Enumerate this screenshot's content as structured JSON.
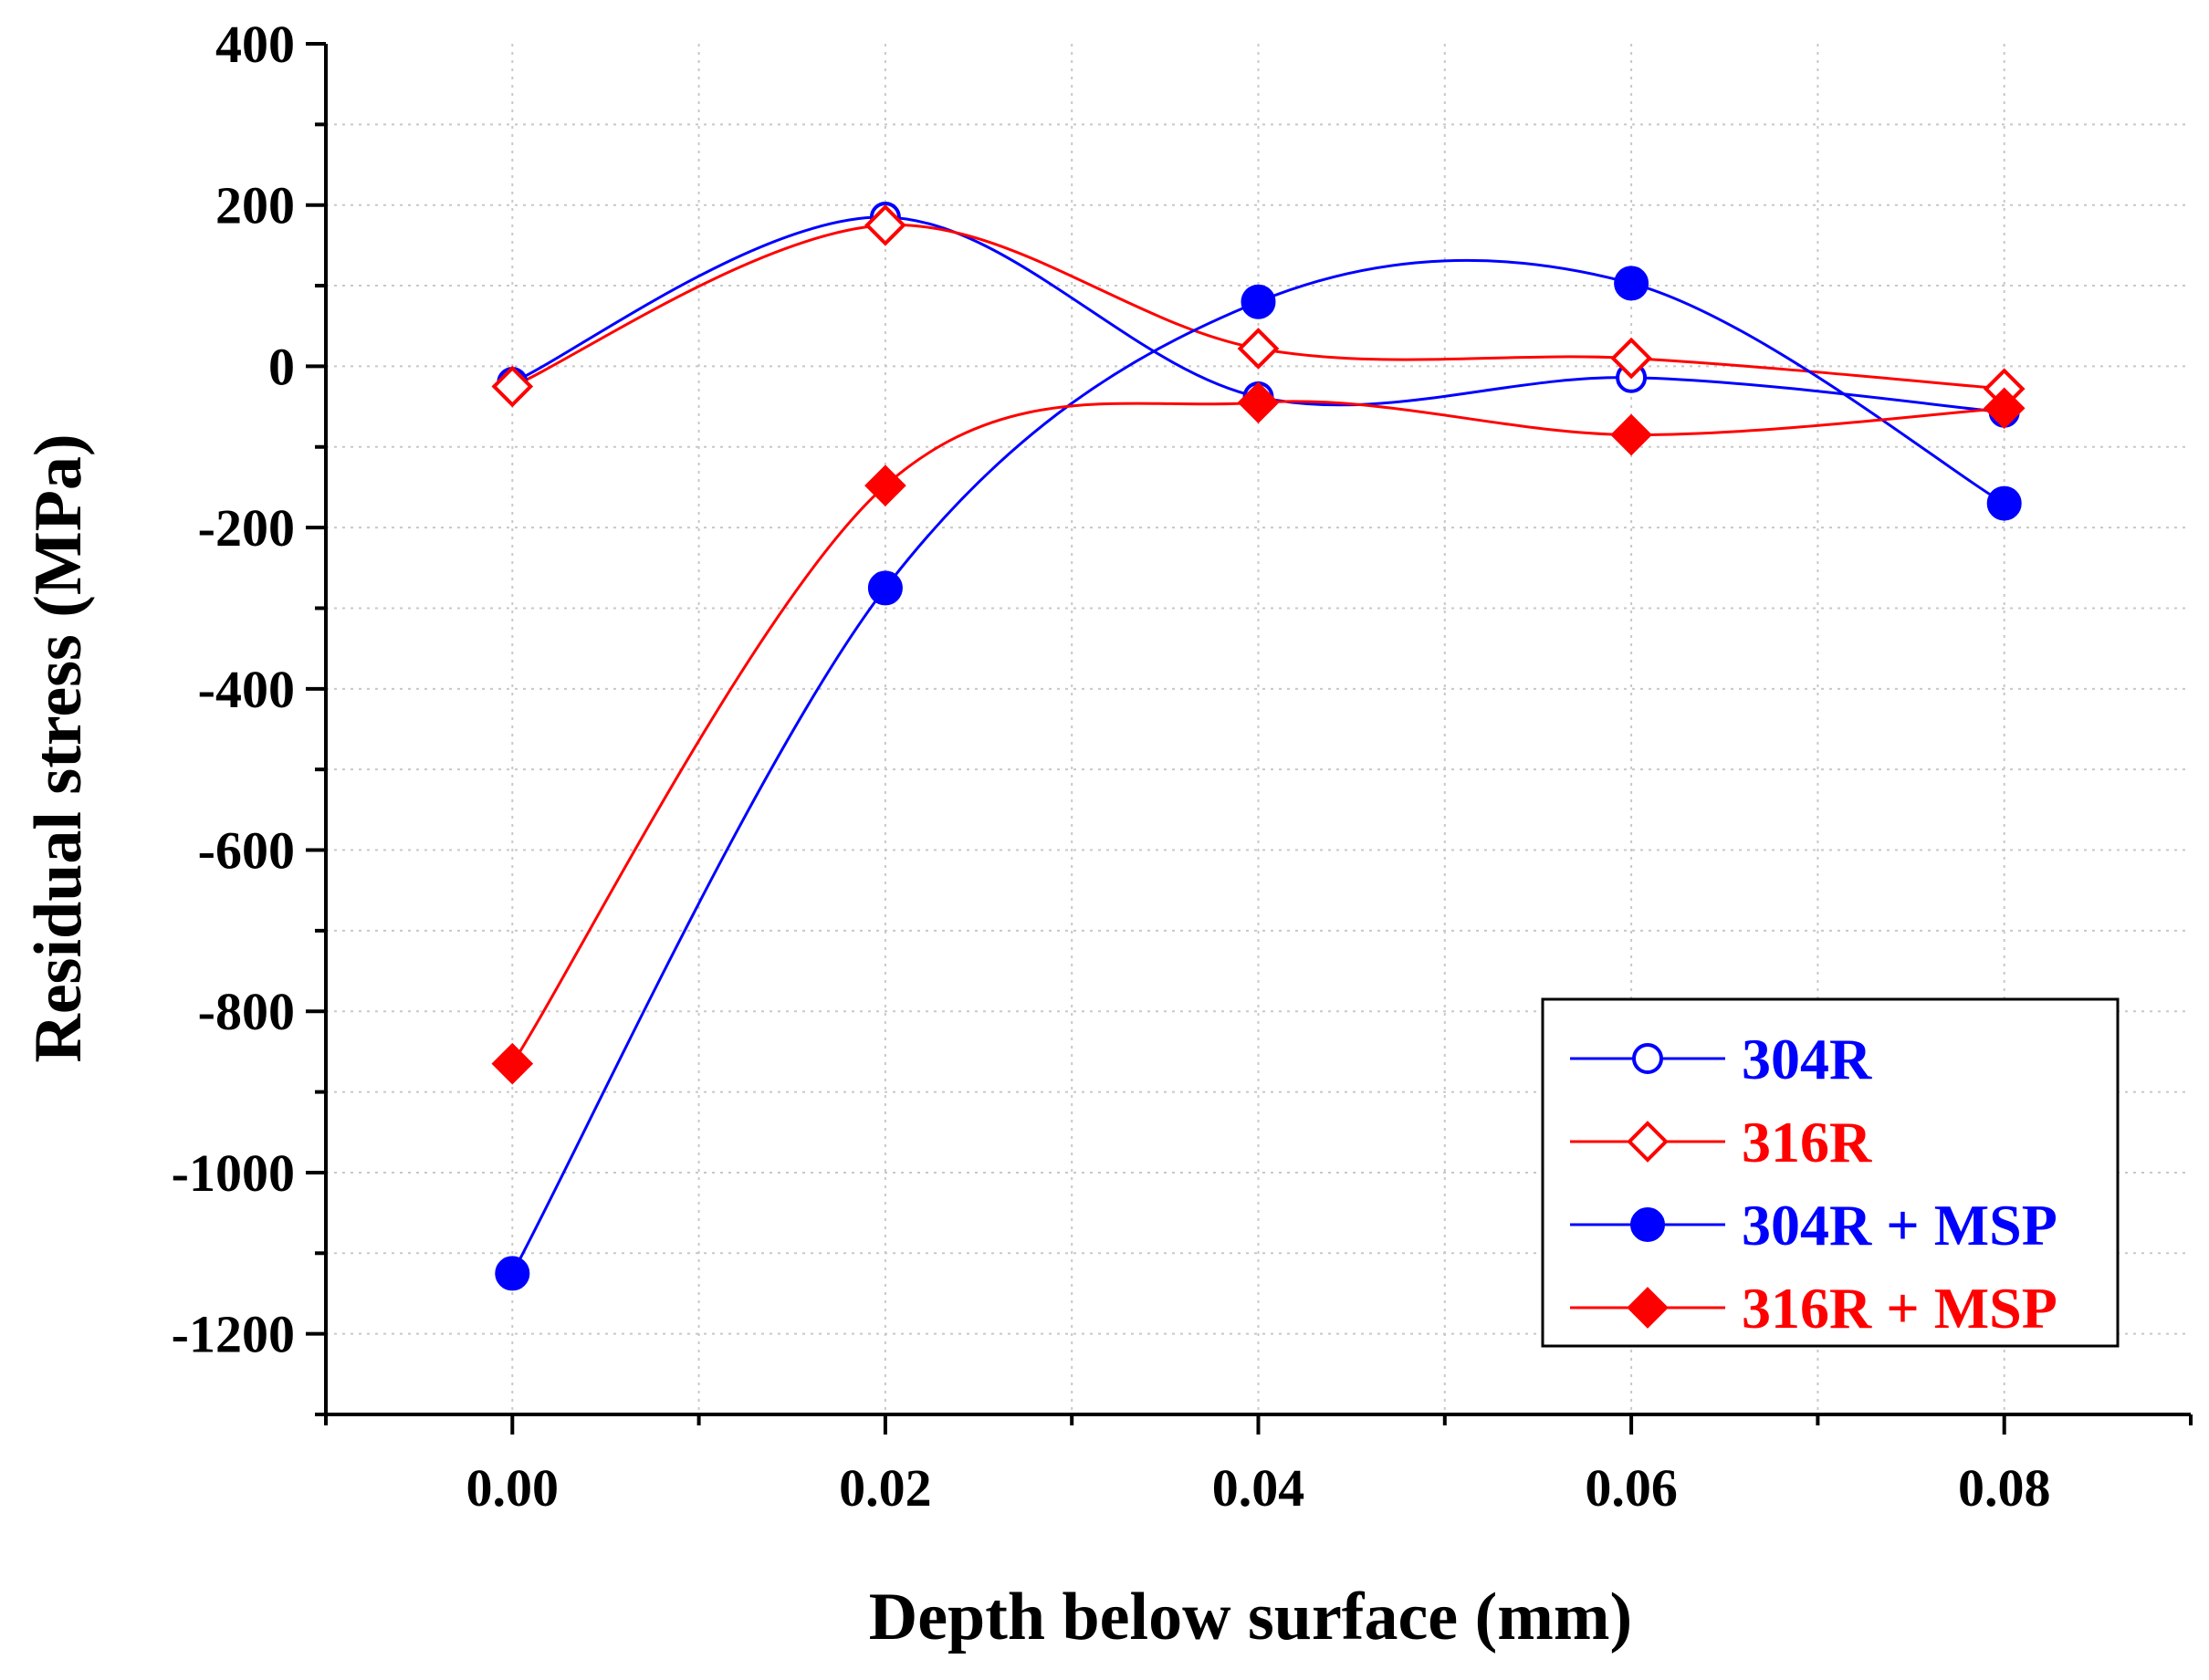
{
  "chart_data": {
    "type": "line",
    "title": "",
    "xlabel": "Depth below surface (mm)",
    "ylabel": "Residual stress (MPa)",
    "xlim": [
      -0.01,
      0.09
    ],
    "ylim": [
      -1300,
      400
    ],
    "x_ticks": [
      0.0,
      0.02,
      0.04,
      0.06,
      0.08
    ],
    "x_tick_labels": [
      "0.00",
      "0.02",
      "0.04",
      "0.06",
      "0.08"
    ],
    "y_ticks": [
      400,
      200,
      0,
      -200,
      -400,
      -600,
      -800,
      -1000,
      -1200
    ],
    "y_tick_labels": [
      "400",
      "200",
      "0",
      "-200",
      "-400",
      "-600",
      "-800",
      "-1000",
      "-1200"
    ],
    "grid": true,
    "legend_position": "bottom-right",
    "x": [
      0.0,
      0.02,
      0.04,
      0.06,
      0.08
    ],
    "series": [
      {
        "name": "304R",
        "values": [
          -20,
          185,
          -38,
          -14,
          -57
        ],
        "color": "#0000ff",
        "marker": "circle-open"
      },
      {
        "name": "316R",
        "values": [
          -25,
          175,
          22,
          10,
          -28
        ],
        "color": "#ff0000",
        "marker": "diamond-open"
      },
      {
        "name": "304R + MSP",
        "values": [
          -1125,
          -275,
          80,
          103,
          -170
        ],
        "color": "#0000ff",
        "marker": "circle-filled"
      },
      {
        "name": "316R + MSP",
        "values": [
          -865,
          -148,
          -45,
          -85,
          -52
        ],
        "color": "#ff0000",
        "marker": "diamond-filled"
      }
    ]
  }
}
